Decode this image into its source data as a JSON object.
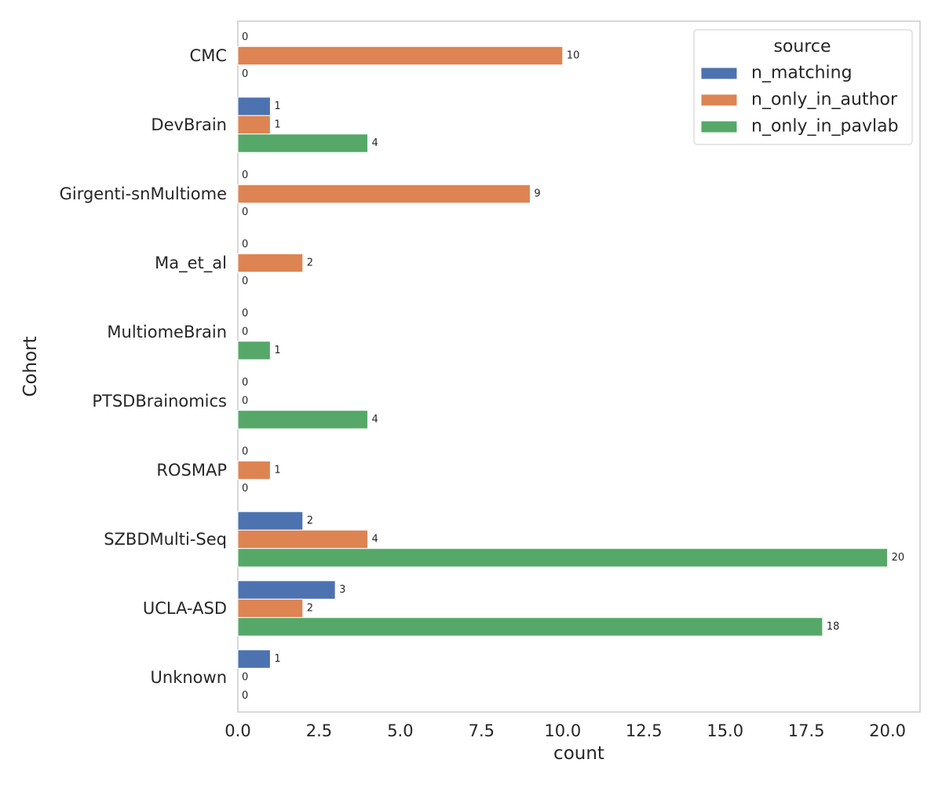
{
  "chart_data": {
    "type": "bar",
    "orientation": "horizontal",
    "categories": [
      "CMC",
      "DevBrain",
      "Girgenti-snMultiome",
      "Ma_et_al",
      "MultiomeBrain",
      "PTSDBrainomics",
      "ROSMAP",
      "SZBDMulti-Seq",
      "UCLA-ASD",
      "Unknown"
    ],
    "series": [
      {
        "name": "n_matching",
        "color": "#4c72b0",
        "values": [
          0,
          1,
          0,
          0,
          0,
          0,
          0,
          2,
          3,
          1
        ]
      },
      {
        "name": "n_only_in_author",
        "color": "#dd8452",
        "values": [
          10,
          1,
          9,
          2,
          0,
          0,
          1,
          4,
          2,
          0
        ]
      },
      {
        "name": "n_only_in_pavlab",
        "color": "#55a868",
        "values": [
          0,
          4,
          0,
          0,
          1,
          4,
          0,
          20,
          18,
          0
        ]
      }
    ],
    "xlabel": "count",
    "ylabel": "Cohort",
    "xlim": [
      0,
      21
    ],
    "xticks": [
      "0.0",
      "2.5",
      "5.0",
      "7.5",
      "10.0",
      "12.5",
      "15.0",
      "17.5",
      "20.0"
    ],
    "grid": false,
    "legend": {
      "title": "source",
      "position": "top-right"
    },
    "data_labels": true
  }
}
